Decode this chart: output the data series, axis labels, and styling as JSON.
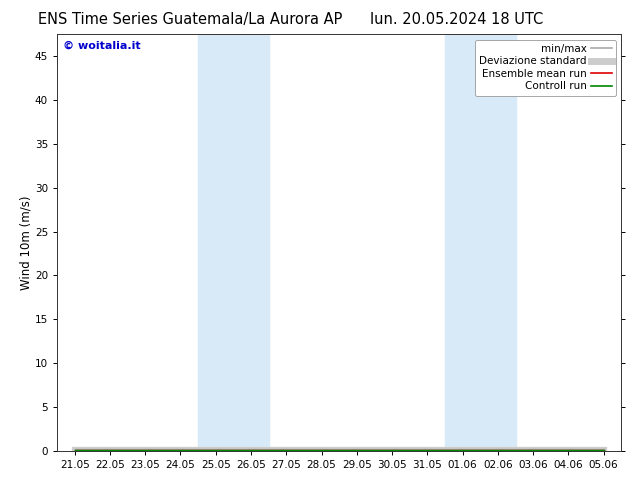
{
  "title_left": "ENS Time Series Guatemala/La Aurora AP",
  "title_right": "lun. 20.05.2024 18 UTC",
  "ylabel": "Wind 10m (m/s)",
  "watermark": "© woitalia.it",
  "ylim": [
    0,
    47.5
  ],
  "yticks": [
    0,
    5,
    10,
    15,
    20,
    25,
    30,
    35,
    40,
    45
  ],
  "xtick_labels": [
    "21.05",
    "22.05",
    "23.05",
    "24.05",
    "25.05",
    "26.05",
    "27.05",
    "28.05",
    "29.05",
    "30.05",
    "31.05",
    "01.06",
    "02.06",
    "03.06",
    "04.06",
    "05.06"
  ],
  "shaded_bands": [
    {
      "xstart": 4,
      "xend": 6
    },
    {
      "xstart": 11,
      "xend": 13
    }
  ],
  "shade_color": "#d8eaf8",
  "legend_items": [
    {
      "label": "min/max",
      "color": "#aaaaaa",
      "lw": 1.2,
      "style": "-"
    },
    {
      "label": "Deviazione standard",
      "color": "#cccccc",
      "lw": 5,
      "style": "-"
    },
    {
      "label": "Ensemble mean run",
      "color": "#dd0000",
      "lw": 1.2,
      "style": "-"
    },
    {
      "label": "Controll run",
      "color": "#008800",
      "lw": 1.2,
      "style": "-"
    }
  ],
  "bg_color": "#ffffff",
  "plot_bg_color": "#ffffff",
  "title_fontsize": 10.5,
  "tick_fontsize": 7.5,
  "ylabel_fontsize": 8.5,
  "watermark_color": "#0000cc",
  "watermark_fontsize": 8,
  "legend_fontsize": 7.5,
  "n_xticks": 16
}
